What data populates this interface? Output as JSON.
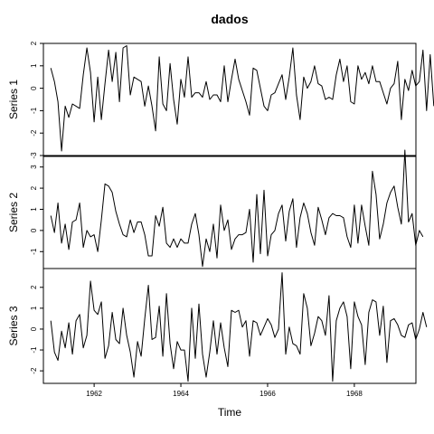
{
  "chart_data": {
    "type": "line",
    "title": "dados",
    "xlabel": "Time",
    "xlim": [
      1960.83,
      1969.42
    ],
    "x_ticks": [
      1962,
      1964,
      1966,
      1968
    ],
    "x_tick_labels": [
      "1962",
      "1964",
      "1966",
      "1968"
    ],
    "start": 1961.0,
    "frequency": 12,
    "series": [
      {
        "name": "Series 1",
        "ylim": [
          -3,
          2
        ],
        "y_ticks": [
          -3,
          -2,
          -1,
          0,
          1,
          2
        ],
        "y_tick_labels": [
          "-3",
          "-2",
          "-1",
          "0",
          "1",
          "2"
        ],
        "values": [
          0.9,
          0.3,
          -0.6,
          -2.8,
          -0.8,
          -1.3,
          -0.7,
          -0.8,
          -0.9,
          0.6,
          1.8,
          0.7,
          -1.5,
          0.5,
          -1.4,
          0.2,
          1.7,
          0.3,
          1.6,
          -0.6,
          1.8,
          1.9,
          -0.3,
          0.5,
          0.4,
          0.3,
          -0.8,
          0.1,
          -0.8,
          -1.9,
          1.4,
          -0.7,
          -1.0,
          1.1,
          -0.5,
          -1.6,
          0.4,
          -0.4,
          1.4,
          -0.4,
          -0.2,
          -0.2,
          -0.4,
          0.3,
          -0.5,
          -0.3,
          -0.3,
          -0.6,
          1.0,
          -0.6,
          0.4,
          1.3,
          0.4,
          -0.1,
          -0.6,
          -1.2,
          0.9,
          0.8,
          0.0,
          -0.8,
          -1.0,
          -0.3,
          -0.2,
          0.2,
          0.6,
          -0.5,
          0.5,
          1.8,
          -0.3,
          -1.4,
          0.5,
          0.0,
          0.3,
          1.0,
          0.2,
          0.1,
          -0.5,
          -0.4,
          -0.5,
          0.6,
          1.3,
          0.3,
          1.0,
          -0.6,
          -0.7,
          1.0,
          0.4,
          0.7,
          0.2,
          1.0,
          0.3,
          0.3,
          -0.2,
          -0.7,
          0.0,
          0.2,
          1.2,
          -1.4,
          0.4,
          -0.1,
          0.8,
          0.1,
          0.3,
          1.7,
          -1.0,
          1.5,
          -0.8
        ]
      },
      {
        "name": "Series 2",
        "ylim": [
          -1.8,
          3.5
        ],
        "y_ticks": [
          -1,
          0,
          1,
          2,
          3
        ],
        "y_tick_labels": [
          "-1",
          "0",
          "1",
          "2",
          "3"
        ],
        "values": [
          0.7,
          -0.1,
          1.3,
          -0.6,
          0.3,
          -0.9,
          0.4,
          0.5,
          1.3,
          -0.8,
          0.0,
          -0.3,
          -0.2,
          -1.0,
          0.5,
          2.2,
          2.1,
          1.8,
          0.9,
          0.3,
          -0.2,
          -0.3,
          0.5,
          -0.1,
          0.4,
          0.4,
          -0.2,
          -1.2,
          -1.2,
          0.7,
          0.2,
          1.1,
          -0.6,
          -0.8,
          -0.4,
          -0.8,
          -0.4,
          -0.6,
          -0.6,
          0.3,
          0.8,
          -0.2,
          -1.7,
          -0.4,
          -1.0,
          0.3,
          -1.3,
          1.2,
          0.0,
          0.5,
          -0.9,
          -0.4,
          -0.2,
          -0.2,
          -0.1,
          1.0,
          -1.5,
          1.7,
          -1.1,
          1.9,
          -1.2,
          -0.2,
          0.0,
          0.8,
          1.2,
          -0.5,
          0.9,
          1.5,
          -0.8,
          0.6,
          1.3,
          0.8,
          -0.1,
          -0.7,
          1.1,
          0.5,
          -0.2,
          0.6,
          0.8,
          0.7,
          0.7,
          0.6,
          -0.3,
          -0.8,
          1.2,
          -0.6,
          1.2,
          0.2,
          -0.7,
          2.8,
          1.7,
          -0.4,
          0.3,
          1.3,
          1.8,
          2.1,
          1.1,
          0.3,
          3.8,
          0.4,
          0.8,
          -0.7,
          0.0,
          -0.3
        ]
      },
      {
        "name": "Series 3",
        "ylim": [
          -2.6,
          2.9
        ],
        "y_ticks": [
          -2,
          -1,
          0,
          1,
          2
        ],
        "y_tick_labels": [
          "-2",
          "-1",
          "0",
          "1",
          "2"
        ],
        "values": [
          0.4,
          -1.1,
          -1.5,
          -0.1,
          -0.9,
          0.3,
          -1.2,
          0.4,
          0.7,
          -0.9,
          -0.3,
          2.3,
          0.9,
          0.7,
          1.3,
          -1.4,
          -0.8,
          0.8,
          -0.5,
          -0.7,
          1.0,
          -0.3,
          -1.1,
          -2.3,
          -0.6,
          -1.3,
          0.5,
          2.1,
          -0.5,
          -0.4,
          1.1,
          -1.3,
          1.7,
          -0.7,
          -1.9,
          -0.6,
          -1.0,
          -1.0,
          -2.5,
          1.0,
          -1.4,
          1.2,
          -1.2,
          -2.3,
          -1.1,
          0.4,
          -1.2,
          0.3,
          -0.9,
          -1.8,
          0.9,
          0.8,
          0.9,
          0.1,
          0.4,
          -1.3,
          0.4,
          0.3,
          -0.3,
          0.1,
          0.5,
          0.2,
          -0.4,
          0.0,
          2.7,
          -1.2,
          0.1,
          -0.7,
          -0.8,
          -1.2,
          1.7,
          1.0,
          -0.8,
          -0.2,
          0.6,
          0.4,
          -0.3,
          1.6,
          -2.5,
          0.4,
          1.0,
          1.3,
          0.6,
          -1.9,
          1.3,
          0.6,
          0.2,
          -1.7,
          0.8,
          1.4,
          1.3,
          -0.3,
          1.1,
          -1.6,
          0.4,
          0.5,
          0.2,
          -0.3,
          -0.4,
          0.2,
          0.3,
          -0.5,
          0.0,
          0.8,
          0.1
        ]
      }
    ]
  }
}
